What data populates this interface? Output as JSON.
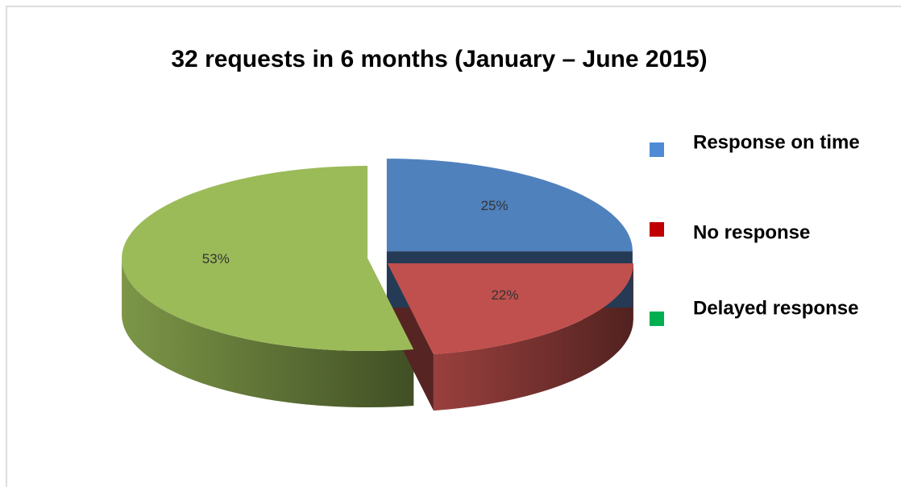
{
  "chart_data": {
    "type": "pie",
    "title": "32 requests in 6 months (January – June 2015)",
    "categories": [
      "Response on time",
      "No response",
      "Delayed response"
    ],
    "values": [
      25,
      22,
      53
    ],
    "value_labels": [
      "25%",
      "22%",
      "53%"
    ],
    "colors": [
      "#4f81bd",
      "#c0504d",
      "#9bbb59"
    ],
    "legend_colors": [
      "#4f8ad6",
      "#c00000",
      "#00b050"
    ],
    "legend": "right"
  }
}
